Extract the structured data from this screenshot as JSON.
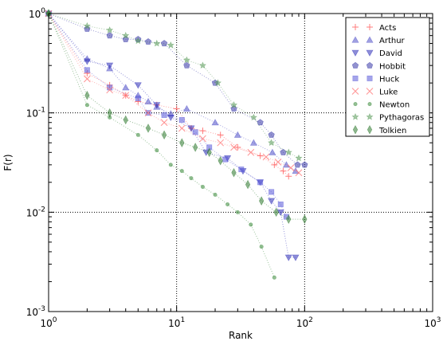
{
  "chart_data": {
    "type": "scatter",
    "xlabel": "Rank",
    "ylabel": "F(r)",
    "xscale": "log",
    "yscale": "log",
    "xlim": [
      1,
      1000
    ],
    "ylim": [
      0.001,
      1
    ],
    "grid": true,
    "legend_position": "top-right",
    "x_ticks": [
      {
        "value": 1,
        "base": "10",
        "exp": "0"
      },
      {
        "value": 10,
        "base": "10",
        "exp": "1"
      },
      {
        "value": 100,
        "base": "10",
        "exp": "2"
      },
      {
        "value": 1000,
        "base": "10",
        "exp": "3"
      }
    ],
    "y_ticks": [
      {
        "value": 0.001,
        "base": "10",
        "exp": "-3"
      },
      {
        "value": 0.01,
        "base": "10",
        "exp": "-2"
      },
      {
        "value": 0.1,
        "base": "10",
        "exp": "-1"
      },
      {
        "value": 1,
        "base": "10",
        "exp": "0"
      }
    ],
    "series": [
      {
        "name": "Acts",
        "color": "#ff5050",
        "marker": "plus",
        "points": [
          [
            1,
            1.0
          ],
          [
            2,
            0.25
          ],
          [
            3,
            0.19
          ],
          [
            4,
            0.15
          ],
          [
            5,
            0.13
          ],
          [
            7,
            0.12
          ],
          [
            10,
            0.11
          ],
          [
            13,
            0.07
          ],
          [
            16,
            0.066
          ],
          [
            22,
            0.06
          ],
          [
            30,
            0.045
          ],
          [
            45,
            0.037
          ],
          [
            58,
            0.03
          ],
          [
            68,
            0.026
          ],
          [
            75,
            0.023
          ]
        ]
      },
      {
        "name": "Arthur",
        "color": "#5050c8",
        "marker": "triangle-up",
        "points": [
          [
            1,
            1.0
          ],
          [
            2,
            0.35
          ],
          [
            3,
            0.28
          ],
          [
            4,
            0.18
          ],
          [
            5,
            0.15
          ],
          [
            6,
            0.13
          ],
          [
            7,
            0.115
          ],
          [
            9,
            0.098
          ],
          [
            12,
            0.11
          ],
          [
            20,
            0.08
          ],
          [
            30,
            0.06
          ],
          [
            40,
            0.05
          ],
          [
            56,
            0.04
          ],
          [
            72,
            0.03
          ],
          [
            85,
            0.026
          ]
        ]
      },
      {
        "name": "David",
        "color": "#3030b8",
        "marker": "triangle-down",
        "points": [
          [
            1,
            1.0
          ],
          [
            2,
            0.33
          ],
          [
            3,
            0.3
          ],
          [
            5,
            0.19
          ],
          [
            7,
            0.12
          ],
          [
            9,
            0.09
          ],
          [
            13,
            0.07
          ],
          [
            17,
            0.04
          ],
          [
            25,
            0.035
          ],
          [
            33,
            0.026
          ],
          [
            45,
            0.02
          ],
          [
            55,
            0.013
          ],
          [
            65,
            0.01
          ],
          [
            75,
            0.0035
          ],
          [
            85,
            0.0035
          ]
        ]
      },
      {
        "name": "Hobbit",
        "color": "#3838a8",
        "marker": "pentagon",
        "points": [
          [
            1,
            1.0
          ],
          [
            2,
            0.7
          ],
          [
            3,
            0.6
          ],
          [
            4,
            0.55
          ],
          [
            5,
            0.55
          ],
          [
            6,
            0.52
          ],
          [
            8,
            0.5
          ],
          [
            12,
            0.3
          ],
          [
            20,
            0.2
          ],
          [
            28,
            0.11
          ],
          [
            45,
            0.08
          ],
          [
            55,
            0.06
          ],
          [
            68,
            0.04
          ],
          [
            88,
            0.03
          ],
          [
            100,
            0.03
          ]
        ]
      },
      {
        "name": "Huck",
        "color": "#5a5ad8",
        "marker": "square",
        "points": [
          [
            1,
            1.0
          ],
          [
            2,
            0.27
          ],
          [
            3,
            0.18
          ],
          [
            5,
            0.14
          ],
          [
            6,
            0.1
          ],
          [
            8,
            0.095
          ],
          [
            11,
            0.085
          ],
          [
            14,
            0.064
          ],
          [
            18,
            0.045
          ],
          [
            24,
            0.034
          ],
          [
            32,
            0.027
          ],
          [
            45,
            0.02
          ],
          [
            55,
            0.016
          ],
          [
            65,
            0.012
          ],
          [
            72,
            0.009
          ]
        ]
      },
      {
        "name": "Luke",
        "color": "#ff7070",
        "marker": "x",
        "points": [
          [
            1,
            1.0
          ],
          [
            2,
            0.22
          ],
          [
            3,
            0.17
          ],
          [
            4,
            0.15
          ],
          [
            6,
            0.1
          ],
          [
            8,
            0.08
          ],
          [
            11,
            0.07
          ],
          [
            16,
            0.055
          ],
          [
            22,
            0.05
          ],
          [
            28,
            0.045
          ],
          [
            38,
            0.04
          ],
          [
            50,
            0.036
          ],
          [
            62,
            0.032
          ],
          [
            78,
            0.028
          ],
          [
            90,
            0.025
          ]
        ]
      },
      {
        "name": "Newton",
        "color": "#3a8a3a",
        "marker": "dot",
        "points": [
          [
            1,
            1.0
          ],
          [
            2,
            0.12
          ],
          [
            3,
            0.09
          ],
          [
            5,
            0.06
          ],
          [
            7,
            0.042
          ],
          [
            9,
            0.03
          ],
          [
            11,
            0.026
          ],
          [
            13,
            0.022
          ],
          [
            16,
            0.018
          ],
          [
            20,
            0.015
          ],
          [
            25,
            0.012
          ],
          [
            30,
            0.01
          ],
          [
            38,
            0.0075
          ],
          [
            46,
            0.0045
          ],
          [
            58,
            0.0022
          ]
        ]
      },
      {
        "name": "Pythagoras",
        "color": "#5a9a5a",
        "marker": "star",
        "points": [
          [
            1,
            1.0
          ],
          [
            2,
            0.75
          ],
          [
            3,
            0.68
          ],
          [
            4,
            0.6
          ],
          [
            5,
            0.53
          ],
          [
            7,
            0.5
          ],
          [
            9,
            0.48
          ],
          [
            12,
            0.34
          ],
          [
            16,
            0.3
          ],
          [
            21,
            0.2
          ],
          [
            28,
            0.12
          ],
          [
            40,
            0.09
          ],
          [
            55,
            0.05
          ],
          [
            75,
            0.04
          ],
          [
            90,
            0.035
          ]
        ]
      },
      {
        "name": "Tolkien",
        "color": "#2f7a2f",
        "marker": "diamond",
        "points": [
          [
            1,
            1.0
          ],
          [
            2,
            0.15
          ],
          [
            3,
            0.1
          ],
          [
            4,
            0.085
          ],
          [
            6,
            0.07
          ],
          [
            8,
            0.06
          ],
          [
            11,
            0.05
          ],
          [
            14,
            0.045
          ],
          [
            18,
            0.04
          ],
          [
            22,
            0.033
          ],
          [
            28,
            0.025
          ],
          [
            36,
            0.019
          ],
          [
            46,
            0.013
          ],
          [
            60,
            0.01
          ],
          [
            75,
            0.0085
          ],
          [
            100,
            0.0085
          ]
        ]
      }
    ]
  }
}
